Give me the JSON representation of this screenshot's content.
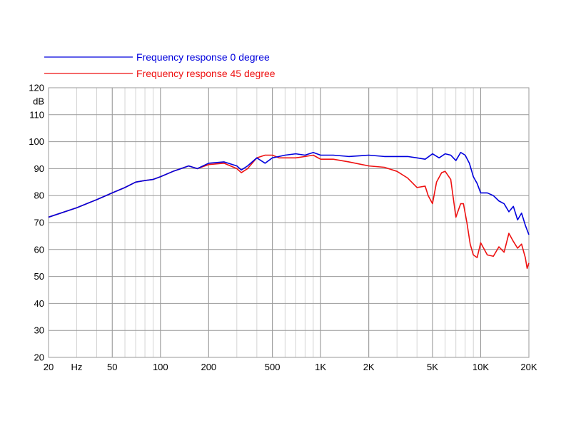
{
  "chart_data": {
    "type": "line",
    "title": "",
    "xlabel": "",
    "ylabel": "",
    "x_scale": "log",
    "xlim": [
      20,
      20000
    ],
    "ylim": [
      20,
      120
    ],
    "grid": true,
    "legend_position": "top-left",
    "y_unit_label": "dB",
    "x_unit_label": "Hz",
    "x_ticks": [
      {
        "value": 20,
        "label": "20"
      },
      {
        "value": 50,
        "label": "50"
      },
      {
        "value": 100,
        "label": "100"
      },
      {
        "value": 200,
        "label": "200"
      },
      {
        "value": 500,
        "label": "500"
      },
      {
        "value": 1000,
        "label": "1K"
      },
      {
        "value": 2000,
        "label": "2K"
      },
      {
        "value": 5000,
        "label": "5K"
      },
      {
        "value": 10000,
        "label": "10K"
      },
      {
        "value": 20000,
        "label": "20K"
      }
    ],
    "y_ticks": [
      {
        "value": 20,
        "label": "20"
      },
      {
        "value": 30,
        "label": "30"
      },
      {
        "value": 40,
        "label": "40"
      },
      {
        "value": 50,
        "label": "50"
      },
      {
        "value": 60,
        "label": "60"
      },
      {
        "value": 70,
        "label": "70"
      },
      {
        "value": 80,
        "label": "80"
      },
      {
        "value": 90,
        "label": "90"
      },
      {
        "value": 100,
        "label": "100"
      },
      {
        "value": 110,
        "label": "110"
      },
      {
        "value": 120,
        "label": "120"
      }
    ],
    "series": [
      {
        "name": "Frequency response 0 degree",
        "color": "#0000dd",
        "points": [
          [
            20,
            72
          ],
          [
            30,
            75.5
          ],
          [
            40,
            78.5
          ],
          [
            50,
            81
          ],
          [
            60,
            83
          ],
          [
            70,
            85
          ],
          [
            80,
            85.6
          ],
          [
            90,
            86
          ],
          [
            100,
            87
          ],
          [
            120,
            89
          ],
          [
            150,
            91
          ],
          [
            170,
            90
          ],
          [
            200,
            92
          ],
          [
            250,
            92.5
          ],
          [
            300,
            91
          ],
          [
            320,
            89.5
          ],
          [
            350,
            91
          ],
          [
            400,
            94
          ],
          [
            450,
            92
          ],
          [
            500,
            94
          ],
          [
            550,
            94.5
          ],
          [
            600,
            95
          ],
          [
            700,
            95.5
          ],
          [
            800,
            95
          ],
          [
            900,
            96
          ],
          [
            1000,
            95
          ],
          [
            1200,
            95
          ],
          [
            1500,
            94.5
          ],
          [
            2000,
            95
          ],
          [
            2500,
            94.5
          ],
          [
            3000,
            94.5
          ],
          [
            3500,
            94.5
          ],
          [
            4000,
            94
          ],
          [
            4500,
            93.5
          ],
          [
            5000,
            95.5
          ],
          [
            5500,
            94
          ],
          [
            6000,
            95.5
          ],
          [
            6500,
            95
          ],
          [
            7000,
            93
          ],
          [
            7500,
            96
          ],
          [
            8000,
            95
          ],
          [
            8500,
            92
          ],
          [
            9000,
            87
          ],
          [
            9500,
            84.5
          ],
          [
            10000,
            81
          ],
          [
            11000,
            81
          ],
          [
            12000,
            80
          ],
          [
            13000,
            78
          ],
          [
            14000,
            77
          ],
          [
            15000,
            74
          ],
          [
            16000,
            76
          ],
          [
            17000,
            71
          ],
          [
            18000,
            73.5
          ],
          [
            19000,
            69
          ],
          [
            20000,
            65.5
          ]
        ]
      },
      {
        "name": "Frequency response 45 degree",
        "color": "#ee1111",
        "points": [
          [
            20,
            72
          ],
          [
            30,
            75.5
          ],
          [
            40,
            78.5
          ],
          [
            50,
            81
          ],
          [
            60,
            83
          ],
          [
            70,
            85
          ],
          [
            80,
            85.6
          ],
          [
            90,
            86
          ],
          [
            100,
            87
          ],
          [
            120,
            89
          ],
          [
            150,
            91
          ],
          [
            170,
            90
          ],
          [
            200,
            91.5
          ],
          [
            250,
            92
          ],
          [
            300,
            90
          ],
          [
            320,
            88.5
          ],
          [
            350,
            90
          ],
          [
            400,
            94
          ],
          [
            450,
            95
          ],
          [
            500,
            95
          ],
          [
            550,
            94
          ],
          [
            600,
            94
          ],
          [
            700,
            94
          ],
          [
            800,
            94.5
          ],
          [
            900,
            95
          ],
          [
            1000,
            93.5
          ],
          [
            1200,
            93.5
          ],
          [
            1500,
            92.5
          ],
          [
            2000,
            91
          ],
          [
            2500,
            90.5
          ],
          [
            3000,
            89
          ],
          [
            3500,
            86.5
          ],
          [
            4000,
            83
          ],
          [
            4500,
            83.5
          ],
          [
            4700,
            80
          ],
          [
            5000,
            77
          ],
          [
            5300,
            85
          ],
          [
            5700,
            88.5
          ],
          [
            6000,
            89
          ],
          [
            6500,
            86
          ],
          [
            7000,
            72
          ],
          [
            7500,
            77
          ],
          [
            7800,
            77
          ],
          [
            8200,
            70
          ],
          [
            8600,
            62
          ],
          [
            9000,
            58
          ],
          [
            9500,
            57
          ],
          [
            10000,
            62.5
          ],
          [
            11000,
            58
          ],
          [
            12000,
            57.5
          ],
          [
            13000,
            61
          ],
          [
            14000,
            59
          ],
          [
            15000,
            66
          ],
          [
            16000,
            63
          ],
          [
            17000,
            60.5
          ],
          [
            18000,
            62
          ],
          [
            19000,
            57
          ],
          [
            19500,
            53
          ],
          [
            20000,
            55
          ]
        ]
      }
    ]
  }
}
